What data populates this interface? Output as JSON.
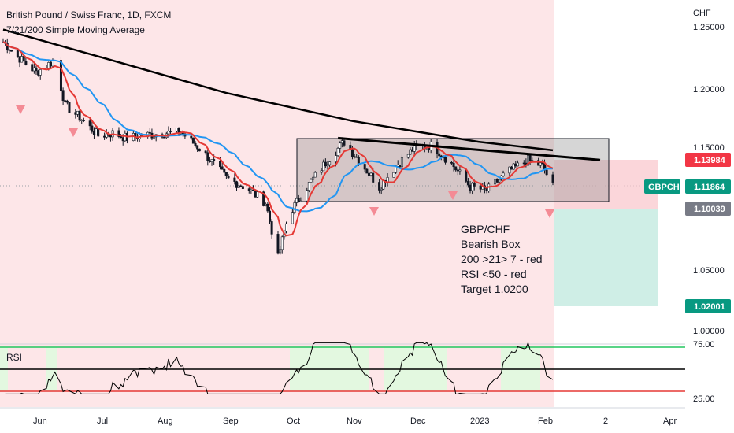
{
  "header": {
    "title": "British Pound / Swiss Franc, 1D, FXCM",
    "indicator": "7/21/200 Simple Moving Average"
  },
  "price_axis": {
    "currency": "CHF",
    "ticks": [
      "1.25000",
      "1.20000",
      "1.15000",
      "1.05000",
      "1.00000"
    ]
  },
  "rsi_panel": {
    "label": "RSI",
    "ticks": [
      "75.00",
      "25.00"
    ]
  },
  "time_axis": {
    "labels": [
      "Jun",
      "Jul",
      "Aug",
      "Sep",
      "Oct",
      "Nov",
      "Dec",
      "2023",
      "Feb",
      "2",
      "Apr"
    ]
  },
  "badges": {
    "stop": "1.13984",
    "symbol": "GBPCHF",
    "last": "1.11864",
    "entry": "1.10039",
    "target": "1.02001"
  },
  "annotation": {
    "lines": [
      "GBP/CHF",
      "Bearish Box",
      "200 >21> 7 - red",
      "RSI <50 - red",
      "Target 1.0200"
    ]
  },
  "colors": {
    "bg_bear": "#fde6e8",
    "bull_rsi": "#e3f8e0",
    "sma7": "#e53935",
    "sma21": "#2196f3",
    "sma200": "#000000",
    "stop_badge": "#f23645",
    "last_badge": "#089981",
    "entry_badge": "#787b86",
    "target_badge": "#089981"
  },
  "chart_data": {
    "type": "candlestick",
    "symbol": "GBPCHF",
    "timeframe": "1D",
    "y_range": [
      0.99,
      1.27
    ],
    "points": [
      {
        "x": "2022-05-16",
        "close": 1.237
      },
      {
        "x": "2022-05-23",
        "close": 1.225
      },
      {
        "x": "2022-06-01",
        "close": 1.212
      },
      {
        "x": "2022-06-10",
        "close": 1.222
      },
      {
        "x": "2022-06-15",
        "close": 1.185
      },
      {
        "x": "2022-06-22",
        "close": 1.175
      },
      {
        "x": "2022-07-01",
        "close": 1.16
      },
      {
        "x": "2022-07-08",
        "close": 1.162
      },
      {
        "x": "2022-07-15",
        "close": 1.158
      },
      {
        "x": "2022-07-22",
        "close": 1.16
      },
      {
        "x": "2022-08-01",
        "close": 1.162
      },
      {
        "x": "2022-08-10",
        "close": 1.163
      },
      {
        "x": "2022-08-20",
        "close": 1.148
      },
      {
        "x": "2022-09-01",
        "close": 1.125
      },
      {
        "x": "2022-09-10",
        "close": 1.118
      },
      {
        "x": "2022-09-20",
        "close": 1.105
      },
      {
        "x": "2022-09-26",
        "close": 1.06
      },
      {
        "x": "2022-10-01",
        "close": 1.095
      },
      {
        "x": "2022-10-10",
        "close": 1.118
      },
      {
        "x": "2022-10-20",
        "close": 1.14
      },
      {
        "x": "2022-10-28",
        "close": 1.155
      },
      {
        "x": "2022-11-05",
        "close": 1.138
      },
      {
        "x": "2022-11-14",
        "close": 1.118
      },
      {
        "x": "2022-11-22",
        "close": 1.135
      },
      {
        "x": "2022-12-01",
        "close": 1.15
      },
      {
        "x": "2022-12-10",
        "close": 1.152
      },
      {
        "x": "2022-12-20",
        "close": 1.135
      },
      {
        "x": "2022-12-28",
        "close": 1.118
      },
      {
        "x": "2023-01-05",
        "close": 1.115
      },
      {
        "x": "2023-01-15",
        "close": 1.13
      },
      {
        "x": "2023-01-25",
        "close": 1.14
      },
      {
        "x": "2023-02-01",
        "close": 1.135
      },
      {
        "x": "2023-02-06",
        "close": 1.11864
      }
    ],
    "sma200": [
      {
        "x": "2022-05-16",
        "y": 1.247
      },
      {
        "x": "2022-07-01",
        "y": 1.225
      },
      {
        "x": "2022-09-01",
        "y": 1.195
      },
      {
        "x": "2022-11-01",
        "y": 1.172
      },
      {
        "x": "2023-01-01",
        "y": 1.155
      },
      {
        "x": "2023-02-06",
        "y": 1.148
      }
    ],
    "resistance_line": [
      {
        "x": "2022-10-25",
        "y": 1.158
      },
      {
        "x": "2023-02-28",
        "y": 1.14
      }
    ],
    "box": {
      "x0": "2022-10-01",
      "x1": "2023-02-28",
      "y0": 1.108,
      "y1": 1.158
    },
    "position": {
      "stop": 1.13984,
      "entry": 1.10039,
      "target": 1.02001
    },
    "rsi": {
      "upper": 75,
      "lower": 25,
      "mid": 50
    }
  }
}
